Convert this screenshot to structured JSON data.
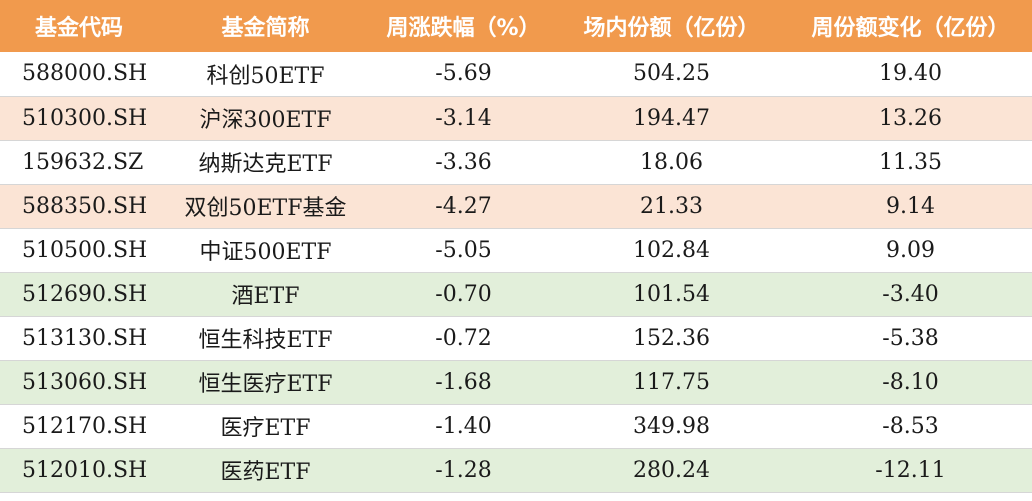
{
  "headers": [
    "基金代码",
    "基金简称",
    "周涨跌幅（%）",
    "场内份额（亿份）",
    "周份额变化（亿份）"
  ],
  "rows": [
    {
      "code": "588000.SH",
      "name": "科创50ETF",
      "weekly_change": "-5.69",
      "shares": "504.25",
      "share_change": "19.40",
      "bg": "white"
    },
    {
      "code": "510300.SH",
      "name": "沪深300ETF",
      "weekly_change": "-3.14",
      "shares": "194.47",
      "share_change": "13.26",
      "bg": "orange"
    },
    {
      "code": "159632.SZ",
      "name": "纳斯达克ETF",
      "weekly_change": "-3.36",
      "shares": "18.06",
      "share_change": "11.35",
      "bg": "white"
    },
    {
      "code": "588350.SH",
      "name": "双创50ETF基金",
      "weekly_change": "-4.27",
      "shares": "21.33",
      "share_change": "9.14",
      "bg": "orange"
    },
    {
      "code": "510500.SH",
      "name": "中证500ETF",
      "weekly_change": "-5.05",
      "shares": "102.84",
      "share_change": "9.09",
      "bg": "white"
    },
    {
      "code": "512690.SH",
      "name": "酒ETF",
      "weekly_change": "-0.70",
      "shares": "101.54",
      "share_change": "-3.40",
      "bg": "green"
    },
    {
      "code": "513130.SH",
      "name": "恒生科技ETF",
      "weekly_change": "-0.72",
      "shares": "152.36",
      "share_change": "-5.38",
      "bg": "white"
    },
    {
      "code": "513060.SH",
      "name": "恒生医疗ETF",
      "weekly_change": "-1.68",
      "shares": "117.75",
      "share_change": "-8.10",
      "bg": "green"
    },
    {
      "code": "512170.SH",
      "name": "医疗ETF",
      "weekly_change": "-1.40",
      "shares": "349.98",
      "share_change": "-8.53",
      "bg": "white"
    },
    {
      "code": "512010.SH",
      "name": "医药ETF",
      "weekly_change": "-1.28",
      "shares": "280.24",
      "share_change": "-12.11",
      "bg": "green"
    }
  ],
  "colors": {
    "header_bg": "#f19a4d",
    "row_orange": "#fbe4d5",
    "row_green": "#e2efda",
    "row_white": "#ffffff"
  }
}
